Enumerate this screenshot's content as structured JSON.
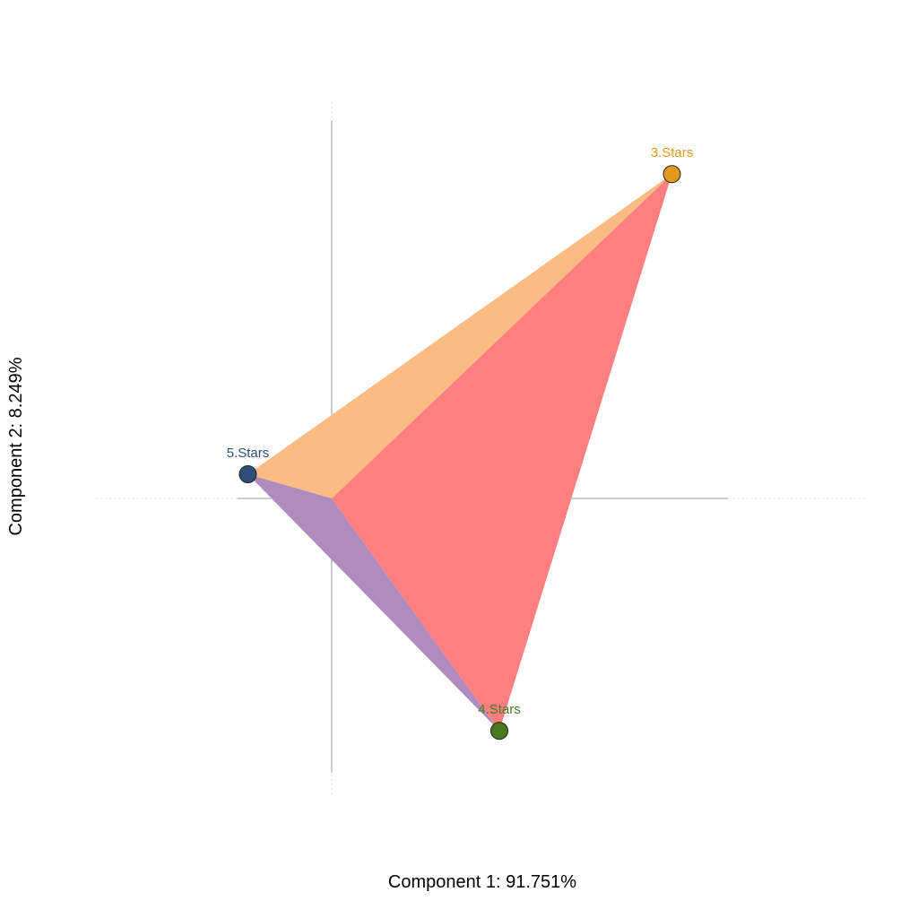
{
  "chart_data": {
    "type": "scatter",
    "subtype": "correspondence-analysis-biplot",
    "title": "",
    "xlabel": "Component 1: 91.751%",
    "ylabel": "Component 2: 8.249%",
    "xlim": [
      -0.55,
      1.0
    ],
    "ylim": [
      -0.55,
      0.8
    ],
    "grid": false,
    "reference_lines": {
      "x": 0,
      "y": 0
    },
    "points": [
      {
        "label": "5.Stars",
        "x": -0.17,
        "y": 0.05,
        "color": "#2e4f7a"
      },
      {
        "label": "3.Stars",
        "x": 0.69,
        "y": 0.67,
        "color": "#e09a1c"
      },
      {
        "label": "4.Stars",
        "x": 0.34,
        "y": -0.48,
        "color": "#4a7a1f"
      }
    ],
    "areas": [
      {
        "from": "5.Stars",
        "to": "3.Stars",
        "color": "#fdbb84"
      },
      {
        "from": "5.Stars",
        "to": "4.Stars",
        "color": "#b08bbd"
      },
      {
        "from": "3.Stars",
        "to": "4.Stars",
        "color": "#ff7f80"
      }
    ]
  }
}
